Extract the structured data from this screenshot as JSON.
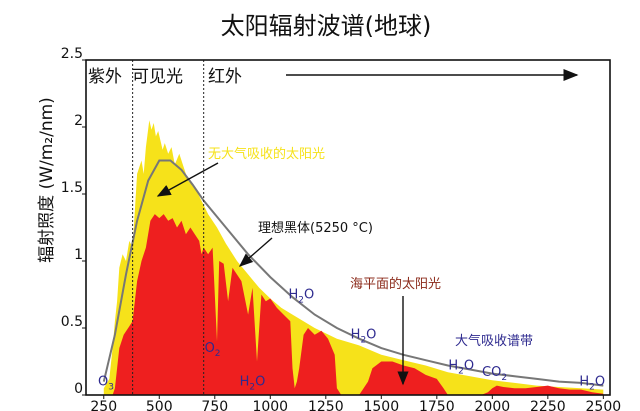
{
  "chart_data": {
    "type": "area",
    "title": "太阳辐射波谱(地球)",
    "ylabel": "辐射照度 (W/m₂/nm)",
    "xlabel": "",
    "xlim": [
      170,
      2530
    ],
    "ylim": [
      0,
      2.5
    ],
    "x_ticks": [
      250,
      500,
      750,
      1000,
      1250,
      1500,
      1750,
      2000,
      2250,
      2500
    ],
    "y_ticks": [
      {
        "value": 0,
        "label": "0"
      },
      {
        "value": 0.5,
        "label": "0.5"
      },
      {
        "value": 1,
        "label": "1"
      },
      {
        "value": 1.5,
        "label": "1.5"
      },
      {
        "value": 2,
        "label": "2"
      },
      {
        "value": 2.5,
        "label": "2.5"
      }
    ],
    "regions": {
      "uv": {
        "label": "紫外",
        "x_end": 380
      },
      "visible": {
        "label": "可见光",
        "x_start": 380,
        "x_end": 700
      },
      "ir": {
        "label": "红外",
        "x_start": 700
      }
    },
    "colors": {
      "top_of_atmosphere": "#f6e21a",
      "sea_level": "#ee1f1f",
      "blackbody": "#777777",
      "absorption_label": "#2e2a8f",
      "sea_level_label": "#8b2a1a"
    },
    "series": [
      {
        "name": "无大气吸收的太阳光",
        "x": [
          250,
          275,
          290,
          300,
          310,
          320,
          335,
          350,
          365,
          380,
          400,
          420,
          430,
          440,
          455,
          465,
          475,
          485,
          495,
          505,
          515,
          525,
          540,
          555,
          570,
          590,
          610,
          630,
          660,
          690,
          720,
          760,
          800,
          850,
          900,
          950,
          1000,
          1050,
          1100,
          1200,
          1300,
          1400,
          1500,
          1600,
          1700,
          1800,
          1900,
          2000,
          2100,
          2200,
          2300,
          2400,
          2500
        ],
        "values": [
          0.05,
          0.12,
          0.35,
          0.55,
          0.7,
          0.95,
          1.05,
          1.0,
          1.15,
          1.1,
          1.65,
          1.75,
          1.65,
          1.85,
          2.05,
          1.98,
          2.03,
          1.93,
          1.97,
          1.9,
          1.83,
          1.88,
          1.8,
          1.85,
          1.72,
          1.8,
          1.7,
          1.6,
          1.55,
          1.45,
          1.35,
          1.25,
          1.13,
          1.0,
          0.9,
          0.8,
          0.72,
          0.65,
          0.6,
          0.5,
          0.42,
          0.37,
          0.3,
          0.26,
          0.22,
          0.17,
          0.14,
          0.11,
          0.09,
          0.07,
          0.06,
          0.05,
          0.04
        ]
      },
      {
        "name": "海平面的太阳光",
        "x": [
          290,
          300,
          310,
          320,
          340,
          360,
          380,
          400,
          420,
          440,
          460,
          480,
          500,
          520,
          540,
          560,
          580,
          600,
          620,
          640,
          660,
          680,
          690,
          700,
          720,
          740,
          760,
          770,
          790,
          810,
          830,
          870,
          900,
          920,
          940,
          960,
          980,
          1000,
          1030,
          1060,
          1090,
          1100,
          1110,
          1120,
          1130,
          1150,
          1170,
          1200,
          1230,
          1260,
          1290,
          1300,
          1320,
          1340,
          1350,
          1400,
          1440,
          1460,
          1500,
          1550,
          1600,
          1650,
          1700,
          1750,
          1780,
          1800,
          1850,
          1900,
          1950,
          1980,
          2000,
          2020,
          2050,
          2100,
          2150,
          2200,
          2250,
          2300,
          2350,
          2400,
          2450,
          2500
        ],
        "values": [
          0,
          0.05,
          0.2,
          0.35,
          0.45,
          0.5,
          0.55,
          0.85,
          1.0,
          1.1,
          1.3,
          1.35,
          1.32,
          1.35,
          1.3,
          1.32,
          1.25,
          1.3,
          1.2,
          1.25,
          1.2,
          1.15,
          1.05,
          1.1,
          1.05,
          1.1,
          0.4,
          1.0,
          0.98,
          0.7,
          0.95,
          0.85,
          0.6,
          0.8,
          0.25,
          0.75,
          0.7,
          0.72,
          0.65,
          0.6,
          0.55,
          0.2,
          0.05,
          0.1,
          0.2,
          0.45,
          0.5,
          0.45,
          0.48,
          0.42,
          0.3,
          0.05,
          0,
          0,
          0,
          0,
          0.1,
          0.2,
          0.25,
          0.25,
          0.22,
          0.2,
          0.15,
          0.12,
          0.05,
          0,
          0,
          0,
          0,
          0.02,
          0.05,
          0.07,
          0.06,
          0.05,
          0.05,
          0.06,
          0.07,
          0.05,
          0.04,
          0.04,
          0.02,
          0.01
        ]
      },
      {
        "name": "理想黑体(5250 °C)",
        "x": [
          250,
          300,
          350,
          400,
          450,
          500,
          550,
          600,
          650,
          700,
          800,
          900,
          1000,
          1100,
          1200,
          1300,
          1400,
          1500,
          1600,
          1700,
          1800,
          1900,
          2000,
          2100,
          2200,
          2300,
          2400,
          2500
        ],
        "values": [
          0.1,
          0.45,
          0.9,
          1.3,
          1.6,
          1.75,
          1.75,
          1.68,
          1.57,
          1.45,
          1.25,
          1.05,
          0.88,
          0.73,
          0.6,
          0.5,
          0.42,
          0.35,
          0.3,
          0.26,
          0.22,
          0.19,
          0.16,
          0.14,
          0.12,
          0.1,
          0.09,
          0.07
        ]
      }
    ],
    "absorption_bands_label": "大气吸收谱带",
    "absorption_labels": [
      {
        "molecule": "O",
        "sub": "3",
        "x": 260,
        "y": 0.07
      },
      {
        "molecule": "O",
        "sub": "2",
        "x": 740,
        "y": 0.32
      },
      {
        "molecule": "H",
        "sub": "2",
        "suffix": "O",
        "x": 920,
        "y": 0.07
      },
      {
        "molecule": "H",
        "sub": "2",
        "suffix": "O",
        "x": 1140,
        "y": 0.72
      },
      {
        "molecule": "H",
        "sub": "2",
        "suffix": "O",
        "x": 1420,
        "y": 0.42
      },
      {
        "molecule": "H",
        "sub": "2",
        "suffix": "O",
        "x": 1860,
        "y": 0.19
      },
      {
        "molecule": "CO",
        "sub": "2",
        "x": 2010,
        "y": 0.14
      },
      {
        "molecule": "H",
        "sub": "2",
        "suffix": "O",
        "x": 2450,
        "y": 0.07
      }
    ]
  }
}
